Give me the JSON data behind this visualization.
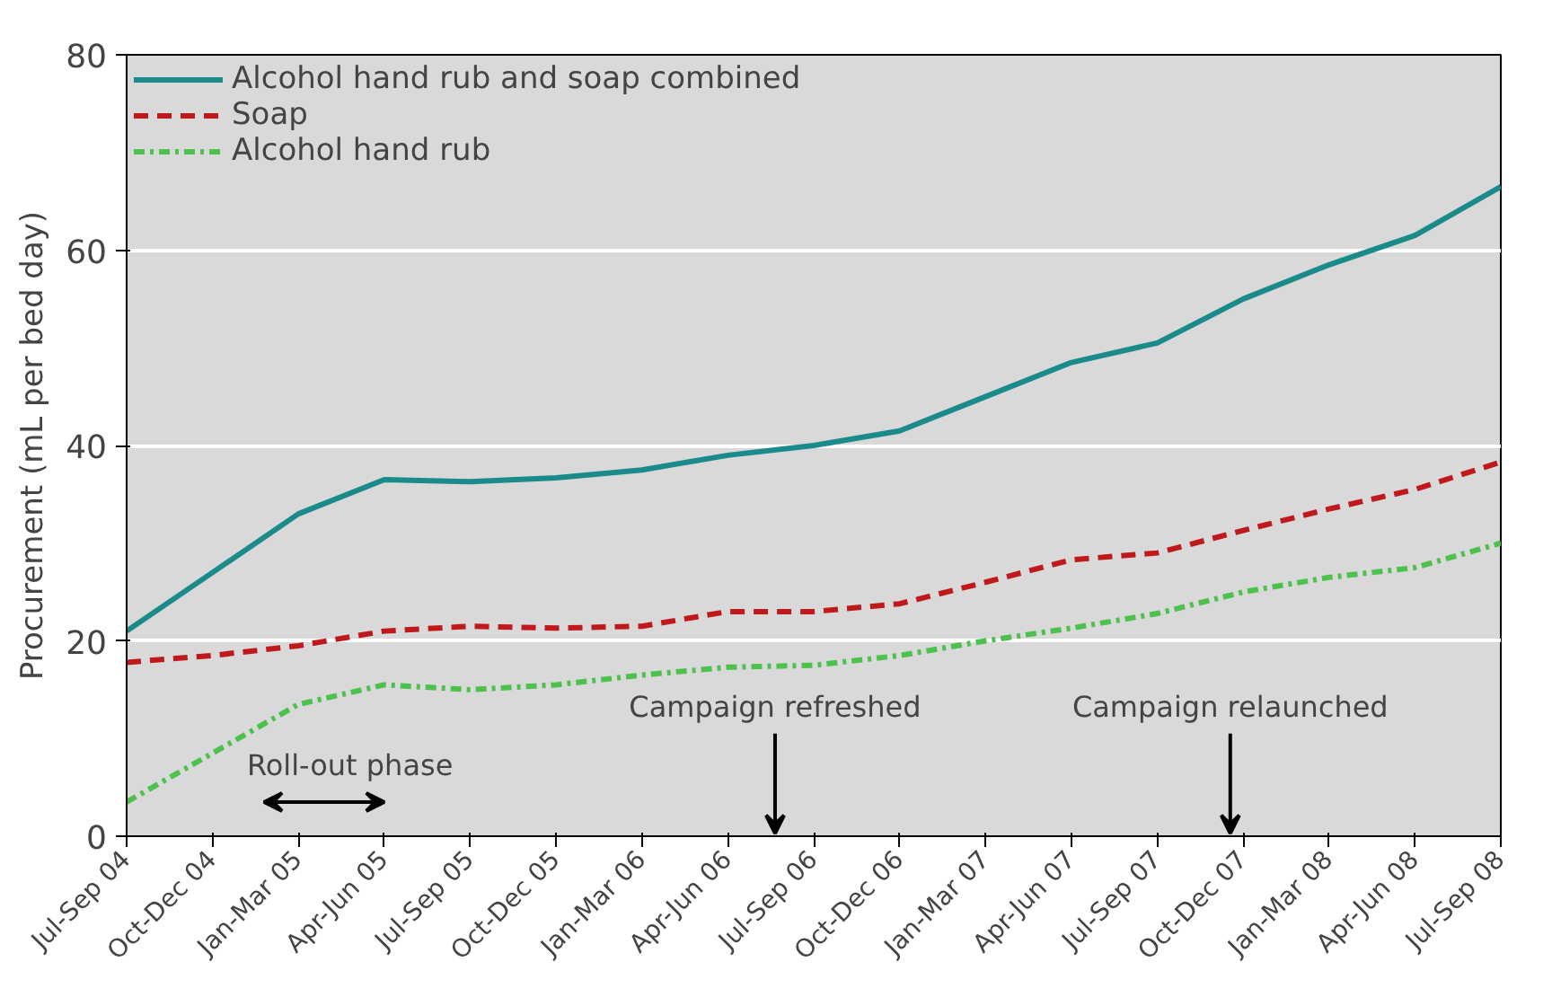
{
  "chart_data": {
    "type": "line",
    "ylabel": "Procurement (mL per bed day)",
    "categories": [
      "Jul-Sep 04",
      "Oct-Dec 04",
      "Jan-Mar 05",
      "Apr-Jun 05",
      "Jul-Sep 05",
      "Oct-Dec 05",
      "Jan-Mar 06",
      "Apr-Jun 06",
      "Jul-Sep 06",
      "Oct-Dec 06",
      "Jan-Mar 07",
      "Apr-Jun 07",
      "Jul-Sep 07",
      "Oct-Dec 07",
      "Jan-Mar 08",
      "Apr-Jun 08",
      "Jul-Sep 08"
    ],
    "series": [
      {
        "name": "Alcohol hand rub and soap combined",
        "color": "#1a8a8a",
        "line_style": "solid",
        "values": [
          21,
          27,
          33,
          36.5,
          36.3,
          36.7,
          37.5,
          39,
          40,
          41.5,
          45,
          48.5,
          50.5,
          55,
          58.5,
          61.5,
          66.5
        ]
      },
      {
        "name": "Soap",
        "color": "#c0191c",
        "line_style": "dashed",
        "values": [
          17.8,
          18.5,
          19.5,
          21,
          21.5,
          21.3,
          21.5,
          23,
          23,
          23.8,
          26,
          28.3,
          29,
          31.3,
          33.5,
          35.5,
          38.3
        ]
      },
      {
        "name": "Alcohol hand rub",
        "color": "#4cc24c",
        "line_style": "dashdot",
        "values": [
          3.5,
          8.5,
          13.5,
          15.5,
          15,
          15.5,
          16.5,
          17.3,
          17.5,
          18.5,
          20,
          21.3,
          22.8,
          25,
          26.5,
          27.5,
          30
        ]
      }
    ],
    "ylim": [
      0,
      80
    ],
    "yticks": [
      0,
      20,
      40,
      60,
      80
    ],
    "grid": "y",
    "legend": "top left",
    "marker": "none",
    "annotations": [
      "Campaign refreshed",
      "Campaign relaunched",
      "Roll-out phase"
    ]
  }
}
